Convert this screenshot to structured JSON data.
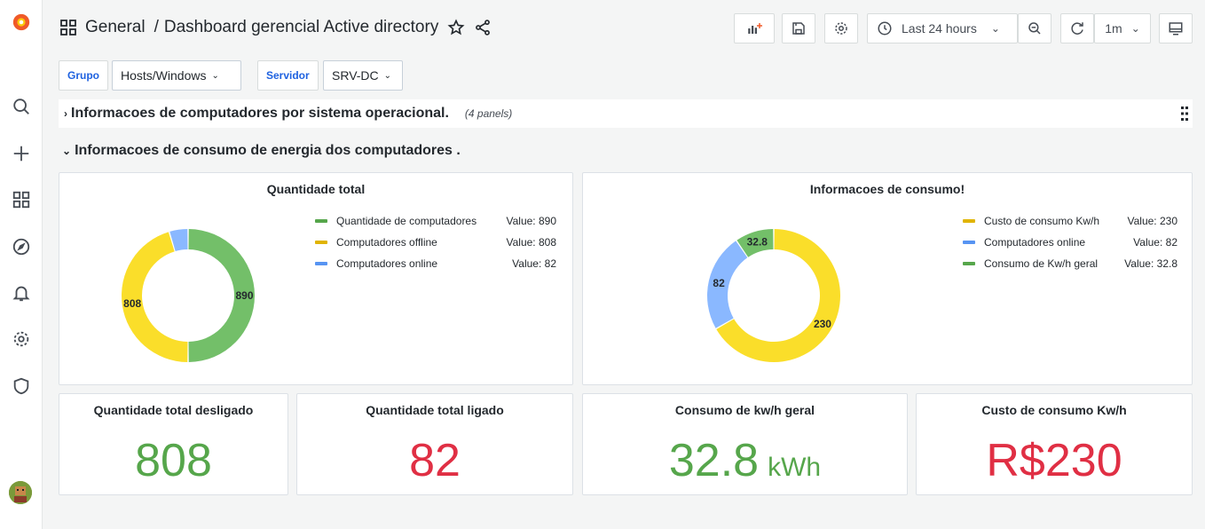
{
  "nav": {
    "folder": "General",
    "separator": "/",
    "dashboard_title": "Dashboard gerencial Active directory",
    "time_range": "Last 24 hours",
    "refresh_interval": "1m"
  },
  "variables": [
    {
      "label": "Grupo",
      "value": "Hosts/Windows"
    },
    {
      "label": "Servidor",
      "value": "SRV-DC"
    }
  ],
  "rows": {
    "collapsed": {
      "title": "Informacoes de computadores por sistema operacional.",
      "count": "(4 panels)"
    },
    "expanded": {
      "title": "Informacoes de consumo de energia dos computadores ."
    }
  },
  "colors": {
    "green": "#73bf69",
    "yellow": "#fade2a",
    "blue": "#8ab8ff",
    "green_text": "#56a64b",
    "red_text": "#e02f44",
    "legend_green": "#56a64b",
    "legend_yellow": "#e0b400",
    "legend_blue": "#5794f2"
  },
  "pie1": {
    "title": "Quantidade total",
    "legend": [
      {
        "name": "Quantidade de computadores",
        "value": "Value: 890"
      },
      {
        "name": "Computadores offline",
        "value": "Value: 808"
      },
      {
        "name": "Computadores online",
        "value": "Value: 82"
      }
    ],
    "labels": {
      "a": "890",
      "b": "808"
    }
  },
  "pie2": {
    "title": "Informacoes de consumo!",
    "legend": [
      {
        "name": "Custo de consumo Kw/h",
        "value": "Value: 230"
      },
      {
        "name": "Computadores online",
        "value": "Value: 82"
      },
      {
        "name": "Consumo de Kw/h geral",
        "value": "Value: 32.8"
      }
    ],
    "labels": {
      "a": "230",
      "b": "82",
      "c": "32.8"
    }
  },
  "chart_data": [
    {
      "type": "pie",
      "title": "Quantidade total",
      "categories": [
        "Quantidade de computadores",
        "Computadores offline",
        "Computadores online"
      ],
      "values": [
        890,
        808,
        82
      ]
    },
    {
      "type": "pie",
      "title": "Informacoes de consumo!",
      "categories": [
        "Custo de consumo Kw/h",
        "Computadores online",
        "Consumo de Kw/h geral"
      ],
      "values": [
        230,
        82,
        32.8
      ]
    }
  ],
  "stats": [
    {
      "title": "Quantidade total desligado",
      "value": "808",
      "unit": ""
    },
    {
      "title": "Quantidade total ligado",
      "value": "82",
      "unit": ""
    },
    {
      "title": "Consumo de kw/h geral",
      "value": "32.8",
      "unit": "kWh"
    },
    {
      "title": "Custo de consumo Kw/h",
      "value": "R$230",
      "unit": ""
    }
  ]
}
